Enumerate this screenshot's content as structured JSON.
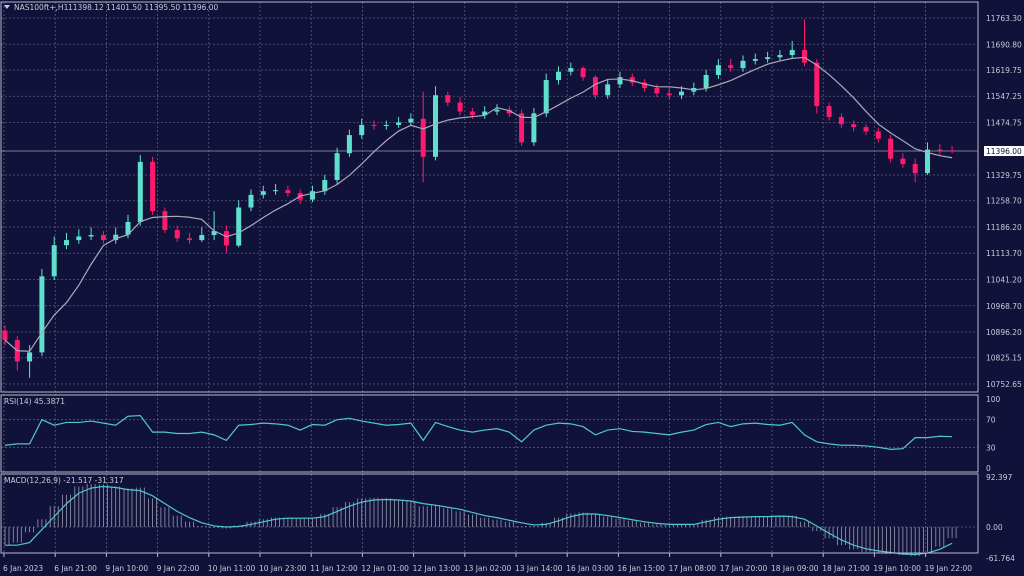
{
  "header": {
    "symbol_label": "NAS100ft+,H1",
    "ohlc_readout": "11398.12 11401.50 11395.50 11396.00"
  },
  "colors": {
    "background": "#10123a",
    "grid": "#5a5c7e",
    "bull": "#5fe0cf",
    "bear": "#ff1a6e",
    "moving_average": "#a9aab8",
    "indicator_line": "#4fc8d0",
    "histogram": "#9a9bb0",
    "axis_text": "#c8cad8"
  },
  "chart_data": [
    {
      "type": "candlestick",
      "title": "NAS100ft+,H1",
      "current_price": "11396.00",
      "ylim": [
        10752.65,
        11763.3
      ],
      "y_ticks": [
        "11763.30",
        "11690.80",
        "11619.75",
        "11547.25",
        "11474.75",
        "11329.75",
        "11258.70",
        "11186.20",
        "11113.70",
        "11041.20",
        "10968.70",
        "10896.20",
        "10825.15",
        "10752.65"
      ],
      "x_ticks": [
        "6 Jan 2023",
        "6 Jan 21:00",
        "9 Jan 10:00",
        "9 Jan 22:00",
        "10 Jan 11:00",
        "10 Jan 23:00",
        "11 Jan 12:00",
        "12 Jan 01:00",
        "12 Jan 13:00",
        "13 Jan 02:00",
        "13 Jan 14:00",
        "16 Jan 03:00",
        "16 Jan 15:00",
        "17 Jan 08:00",
        "17 Jan 20:00",
        "18 Jan 09:00",
        "18 Jan 21:00",
        "19 Jan 10:00",
        "19 Jan 22:00"
      ],
      "grid": true,
      "open": [
        10900,
        10874,
        10815,
        10840,
        11050,
        11136,
        11150,
        11160,
        11164,
        11150,
        11165,
        11200,
        11366,
        11230,
        11178,
        11155,
        11150,
        11164,
        11175,
        11135,
        11240,
        11275,
        11285,
        11288,
        11280,
        11262,
        11285,
        11316,
        11390,
        11440,
        11468,
        11466,
        11468,
        11475,
        11485,
        11380,
        11550,
        11530,
        11505,
        11495,
        11505,
        11510,
        11500,
        11420,
        11500,
        11592,
        11615,
        11625,
        11600,
        11550,
        11580,
        11600,
        11585,
        11570,
        11555,
        11550,
        11560,
        11570,
        11606,
        11633,
        11625,
        11645,
        11650,
        11655,
        11661,
        11675,
        11640,
        11520,
        11490,
        11470,
        11462,
        11450,
        11430,
        11375,
        11360,
        11335,
        11400,
        11398
      ],
      "high": [
        10915,
        10885,
        10860,
        11070,
        11160,
        11170,
        11180,
        11185,
        11175,
        11185,
        11220,
        11385,
        11380,
        11240,
        11190,
        11170,
        11185,
        11230,
        11190,
        11260,
        11290,
        11300,
        11305,
        11300,
        11290,
        11300,
        11330,
        11405,
        11455,
        11485,
        11480,
        11480,
        11490,
        11500,
        11560,
        11575,
        11560,
        11545,
        11515,
        11520,
        11525,
        11520,
        11510,
        11515,
        11610,
        11630,
        11640,
        11630,
        11605,
        11595,
        11615,
        11610,
        11595,
        11580,
        11570,
        11575,
        11585,
        11620,
        11650,
        11650,
        11660,
        11665,
        11670,
        11675,
        11700,
        11760,
        11650,
        11530,
        11500,
        11480,
        11470,
        11460,
        11440,
        11390,
        11375,
        11420,
        11415,
        11410
      ],
      "low": [
        10860,
        10790,
        10770,
        10830,
        11040,
        11125,
        11140,
        11150,
        11140,
        11140,
        11155,
        11190,
        11220,
        11170,
        11145,
        11140,
        11145,
        11150,
        11115,
        11130,
        11230,
        11265,
        11275,
        11270,
        11250,
        11255,
        11275,
        11305,
        11380,
        11430,
        11455,
        11455,
        11460,
        11465,
        11310,
        11370,
        11520,
        11495,
        11485,
        11485,
        11495,
        11490,
        11410,
        11410,
        11490,
        11580,
        11605,
        11590,
        11540,
        11540,
        11570,
        11575,
        11560,
        11545,
        11540,
        11540,
        11550,
        11560,
        11595,
        11615,
        11615,
        11635,
        11640,
        11645,
        11650,
        11630,
        11500,
        11480,
        11460,
        11450,
        11440,
        11420,
        11365,
        11350,
        11310,
        11330,
        11385,
        11390
      ],
      "close": [
        10874,
        10815,
        10840,
        11050,
        11136,
        11150,
        11160,
        11164,
        11150,
        11165,
        11200,
        11366,
        11230,
        11178,
        11155,
        11150,
        11164,
        11175,
        11135,
        11240,
        11275,
        11285,
        11288,
        11280,
        11262,
        11285,
        11316,
        11390,
        11440,
        11468,
        11466,
        11468,
        11475,
        11485,
        11380,
        11550,
        11530,
        11505,
        11495,
        11505,
        11510,
        11500,
        11420,
        11500,
        11592,
        11615,
        11625,
        11600,
        11550,
        11580,
        11600,
        11585,
        11570,
        11555,
        11550,
        11560,
        11570,
        11606,
        11633,
        11625,
        11645,
        11650,
        11655,
        11661,
        11675,
        11640,
        11520,
        11490,
        11470,
        11462,
        11450,
        11430,
        11375,
        11360,
        11335,
        11400,
        11398,
        11396
      ]
    },
    {
      "type": "line",
      "title": "RSI(14) 45.3871",
      "ylim": [
        0,
        100
      ],
      "y_ticks": [
        "100",
        "70",
        "30",
        "0"
      ],
      "levels": [
        70,
        30
      ],
      "values": [
        33,
        35,
        35,
        70,
        62,
        66,
        66,
        68,
        65,
        62,
        75,
        76,
        52,
        52,
        50,
        50,
        52,
        48,
        40,
        62,
        63,
        65,
        64,
        62,
        55,
        63,
        62,
        70,
        72,
        68,
        65,
        62,
        63,
        65,
        40,
        66,
        60,
        55,
        52,
        55,
        57,
        52,
        38,
        55,
        62,
        65,
        64,
        60,
        48,
        55,
        57,
        53,
        52,
        50,
        48,
        52,
        55,
        63,
        66,
        60,
        64,
        65,
        63,
        62,
        66,
        48,
        38,
        35,
        33,
        33,
        32,
        30,
        27,
        28,
        44,
        44,
        46,
        45.3871
      ]
    },
    {
      "type": "bar+line",
      "title": "MACD(12,26,9) -21.517 -31.317",
      "ylim": [
        -61.764,
        92.397
      ],
      "y_ticks": [
        "92.397",
        "0.00",
        "-61.764"
      ],
      "histogram": [
        -35,
        -30,
        -10,
        15,
        40,
        62,
        78,
        83,
        82,
        78,
        74,
        76,
        55,
        38,
        22,
        10,
        2,
        -2,
        -3,
        3,
        10,
        15,
        18,
        18,
        16,
        18,
        25,
        38,
        48,
        55,
        56,
        55,
        52,
        50,
        40,
        42,
        36,
        30,
        24,
        18,
        14,
        10,
        2,
        2,
        8,
        18,
        26,
        28,
        24,
        20,
        16,
        12,
        8,
        5,
        4,
        4,
        6,
        14,
        19,
        20,
        21,
        21,
        21,
        22,
        22,
        10,
        -8,
        -22,
        -35,
        -43,
        -48,
        -50,
        -52,
        -54,
        -56,
        -48,
        -38,
        -21.517
      ],
      "signal": [
        -35,
        -35,
        -30,
        -5,
        20,
        45,
        65,
        75,
        78,
        76,
        72,
        70,
        60,
        45,
        30,
        18,
        8,
        2,
        0,
        1,
        5,
        10,
        15,
        17,
        17,
        17,
        20,
        30,
        40,
        48,
        52,
        53,
        52,
        50,
        45,
        42,
        38,
        34,
        28,
        22,
        18,
        13,
        8,
        4,
        5,
        12,
        20,
        25,
        25,
        22,
        18,
        14,
        10,
        7,
        5,
        5,
        5,
        10,
        15,
        18,
        19,
        20,
        20,
        21,
        20,
        15,
        2,
        -12,
        -25,
        -35,
        -42,
        -46,
        -49,
        -52,
        -53,
        -50,
        -43,
        -31.317
      ]
    }
  ]
}
